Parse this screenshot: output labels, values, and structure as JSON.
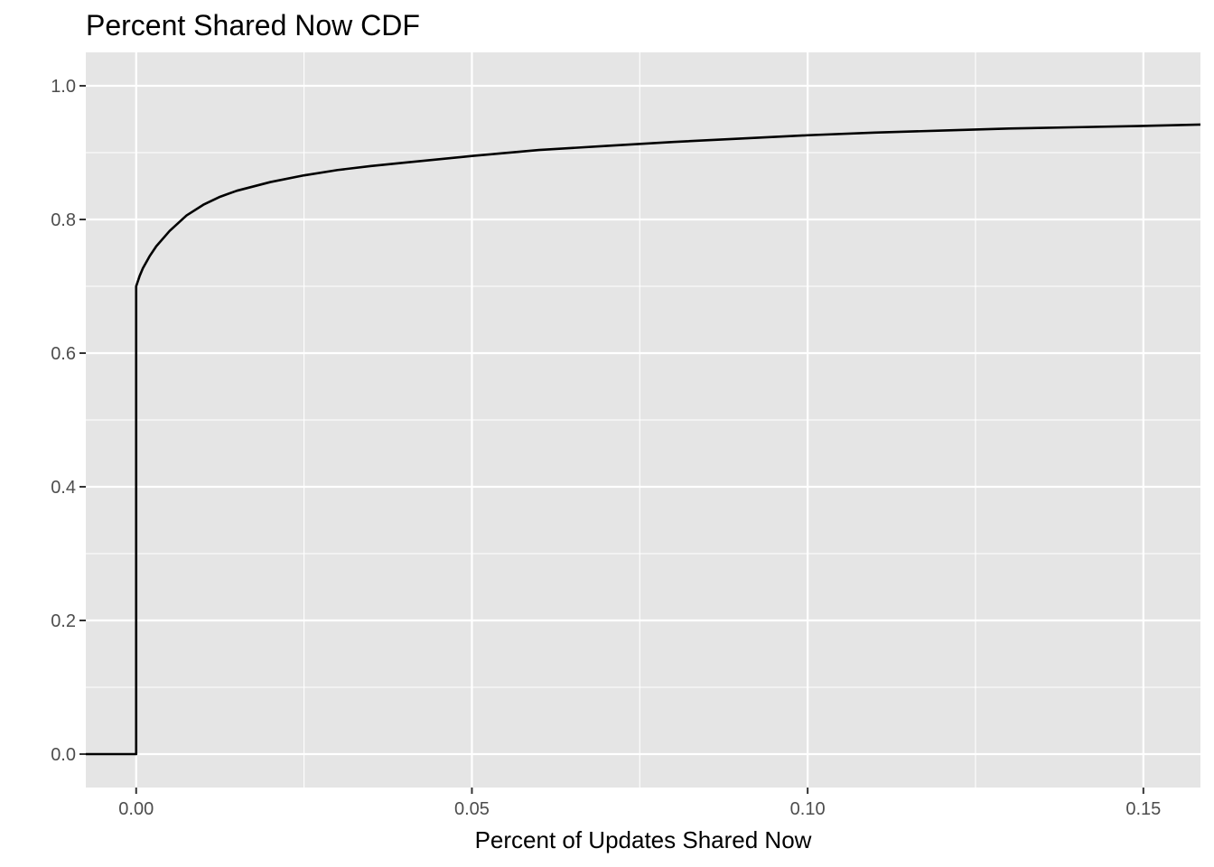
{
  "chart_data": {
    "type": "line",
    "title": "Percent Shared Now CDF",
    "xlabel": "Percent of Updates Shared Now",
    "ylabel": "",
    "xlim": [
      -0.0075,
      0.1585
    ],
    "ylim": [
      -0.05,
      1.05
    ],
    "x_ticks": [
      {
        "value": 0.0,
        "label": "0.00"
      },
      {
        "value": 0.05,
        "label": "0.05"
      },
      {
        "value": 0.1,
        "label": "0.10"
      },
      {
        "value": 0.15,
        "label": "0.15"
      }
    ],
    "y_ticks": [
      {
        "value": 0.0,
        "label": "0.0"
      },
      {
        "value": 0.2,
        "label": "0.2"
      },
      {
        "value": 0.4,
        "label": "0.4"
      },
      {
        "value": 0.6,
        "label": "0.6"
      },
      {
        "value": 0.8,
        "label": "0.8"
      },
      {
        "value": 1.0,
        "label": "1.0"
      }
    ],
    "grid": true,
    "colors": {
      "panel": "#e5e5e5",
      "grid": "#ffffff",
      "line": "#000000"
    },
    "series": [
      {
        "x": [
          -0.0075,
          0.0,
          0.0,
          0.0005,
          0.001,
          0.002,
          0.003,
          0.005,
          0.0075,
          0.01,
          0.0125,
          0.015,
          0.02,
          0.025,
          0.03,
          0.035,
          0.04,
          0.05,
          0.06,
          0.07,
          0.08,
          0.09,
          0.1,
          0.11,
          0.12,
          0.13,
          0.14,
          0.15,
          0.1585
        ],
        "y": [
          0.0,
          0.0,
          0.7,
          0.715,
          0.727,
          0.745,
          0.76,
          0.783,
          0.806,
          0.822,
          0.834,
          0.843,
          0.856,
          0.866,
          0.874,
          0.88,
          0.885,
          0.895,
          0.904,
          0.91,
          0.916,
          0.921,
          0.926,
          0.93,
          0.933,
          0.936,
          0.938,
          0.94,
          0.942
        ]
      }
    ]
  }
}
